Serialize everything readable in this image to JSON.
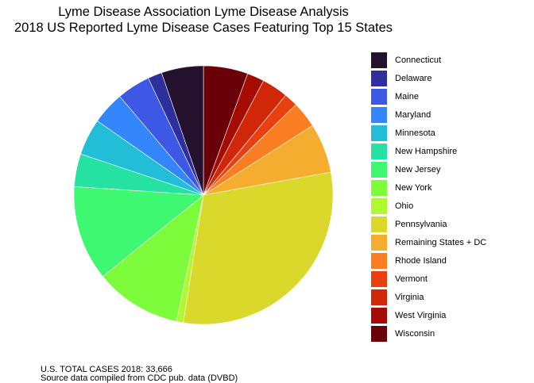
{
  "title": {
    "line1": "Lyme Disease Association Lyme Disease Analysis",
    "line2": "2018 US Reported Lyme Disease Cases Featuring Top 15 States"
  },
  "footer": {
    "line1": "U.S. TOTAL CASES 2018: 33,666",
    "line2": "Source data compiled from CDC pub. data (DVBD)"
  },
  "chart_data": {
    "type": "pie",
    "title": "Lyme Disease Association Lyme Disease Analysis / 2018 US Reported Lyme Disease Cases Featuring Top 15 States",
    "legend_position": "right",
    "start": "top",
    "direction": "clockwise",
    "total": 33666,
    "slices": [
      {
        "label": "Wisconsin",
        "value": 1869,
        "color": "#6a0008"
      },
      {
        "label": "West Virginia",
        "value": 717,
        "color": "#a50a03"
      },
      {
        "label": "Virginia",
        "value": 1101,
        "color": "#d02709"
      },
      {
        "label": "Vermont",
        "value": 574,
        "color": "#e8410f"
      },
      {
        "label": "Rhode Island",
        "value": 1111,
        "color": "#fb7d21"
      },
      {
        "label": "Remaining States + DC",
        "value": 2090,
        "color": "#f5ad2f"
      },
      {
        "label": "Pennsylvania",
        "value": 10208,
        "color": "#d9d82b"
      },
      {
        "label": "Ohio",
        "value": 292,
        "color": "#b1f830"
      },
      {
        "label": "New York",
        "value": 3638,
        "color": "#7dfc3b"
      },
      {
        "label": "New Jersey",
        "value": 4000,
        "color": "#3df870"
      },
      {
        "label": "New Hampshire",
        "value": 1383,
        "color": "#25e2a2"
      },
      {
        "label": "Minnesota",
        "value": 1541,
        "color": "#22bed8"
      },
      {
        "label": "Maryland",
        "value": 1380,
        "color": "#3386fb"
      },
      {
        "label": "Maine",
        "value": 1405,
        "color": "#3d58e4"
      },
      {
        "label": "Delaware",
        "value": 593,
        "color": "#2e2e9e"
      },
      {
        "label": "Connecticut",
        "value": 1764,
        "color": "#23112e"
      }
    ]
  },
  "legend": [
    {
      "label": "Connecticut",
      "color": "#23112e"
    },
    {
      "label": "Delaware",
      "color": "#2e2e9e"
    },
    {
      "label": "Maine",
      "color": "#3d58e4"
    },
    {
      "label": "Maryland",
      "color": "#3386fb"
    },
    {
      "label": "Minnesota",
      "color": "#22bed8"
    },
    {
      "label": "New Hampshire",
      "color": "#25e2a2"
    },
    {
      "label": "New Jersey",
      "color": "#3df870"
    },
    {
      "label": "New York",
      "color": "#7dfc3b"
    },
    {
      "label": "Ohio",
      "color": "#b1f830"
    },
    {
      "label": "Pennsylvania",
      "color": "#d9d82b"
    },
    {
      "label": "Remaining States + DC",
      "color": "#f5ad2f"
    },
    {
      "label": "Rhode Island",
      "color": "#fb7d21"
    },
    {
      "label": "Vermont",
      "color": "#e8410f"
    },
    {
      "label": "Virginia",
      "color": "#d02709"
    },
    {
      "label": "West Virginia",
      "color": "#a50a03"
    },
    {
      "label": "Wisconsin",
      "color": "#6a0008"
    }
  ]
}
